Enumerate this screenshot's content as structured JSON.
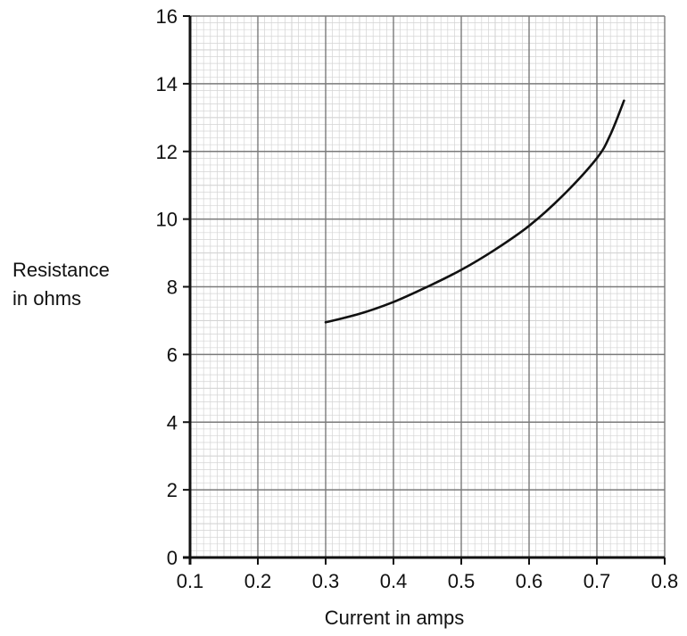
{
  "chart_data": {
    "type": "line",
    "title": "",
    "xlabel": "Current in amps",
    "ylabel_lines": [
      "Resistance",
      "in ohms"
    ],
    "xlim": [
      0.1,
      0.8
    ],
    "ylim": [
      0,
      16
    ],
    "x_ticks": [
      "0.1",
      "0.2",
      "0.3",
      "0.4",
      "0.5",
      "0.6",
      "0.7",
      "0.8"
    ],
    "y_ticks": [
      "0",
      "2",
      "4",
      "6",
      "8",
      "10",
      "12",
      "14",
      "16"
    ],
    "grid": "on (major every 0.1 A and 2 ohms, minor every 0.01 A and 0.2 ohms)",
    "legend": "none",
    "series": [
      {
        "color": "#111111",
        "x": [
          0.3,
          0.35,
          0.4,
          0.45,
          0.5,
          0.55,
          0.6,
          0.65,
          0.7,
          0.72,
          0.74
        ],
        "y": [
          6.95,
          7.2,
          7.55,
          8.0,
          8.5,
          9.1,
          9.8,
          10.7,
          11.8,
          12.5,
          13.5
        ]
      }
    ]
  }
}
